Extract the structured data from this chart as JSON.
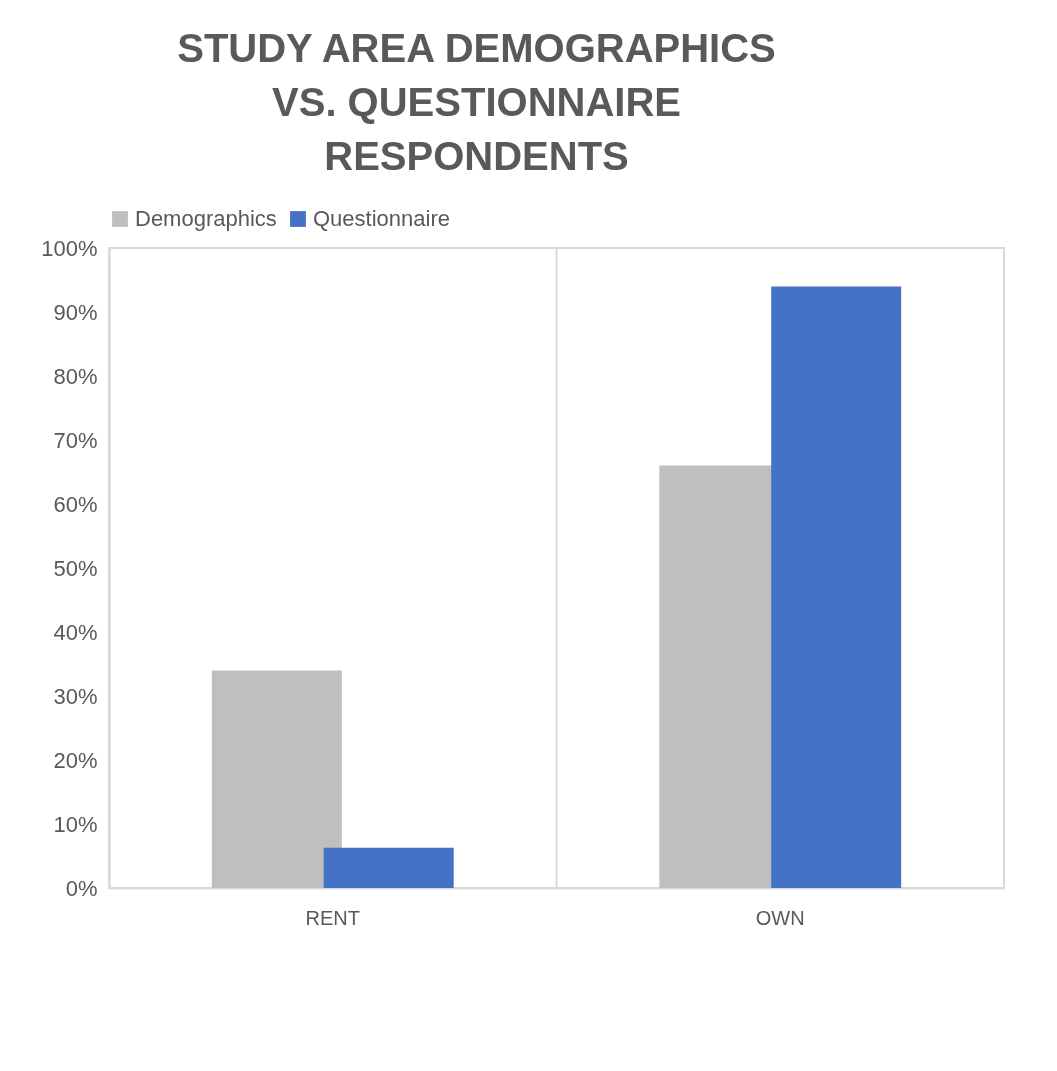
{
  "chart_data": {
    "type": "bar",
    "title": "STUDY AREA DEMOGRAPHICS VS. QUESTIONNAIRE RESPONDENTS",
    "categories": [
      "RENT",
      "OWN"
    ],
    "series": [
      {
        "name": "Demographics",
        "color": "#bfbfbf",
        "values": [
          34,
          66
        ]
      },
      {
        "name": "Questionnaire",
        "color": "#4472c4",
        "values": [
          6.3,
          94
        ]
      }
    ],
    "ylim": [
      0,
      100
    ],
    "yticks": [
      {
        "value": 0,
        "label": "0%"
      },
      {
        "value": 10,
        "label": "10%"
      },
      {
        "value": 20,
        "label": "20%"
      },
      {
        "value": 30,
        "label": "30%"
      },
      {
        "value": 40,
        "label": "40%"
      },
      {
        "value": 50,
        "label": "50%"
      },
      {
        "value": 60,
        "label": "60%"
      },
      {
        "value": 70,
        "label": "70%"
      },
      {
        "value": 80,
        "label": "80%"
      },
      {
        "value": 90,
        "label": "90%"
      },
      {
        "value": 100,
        "label": "100%"
      }
    ],
    "grid": "x",
    "legend": "top"
  }
}
